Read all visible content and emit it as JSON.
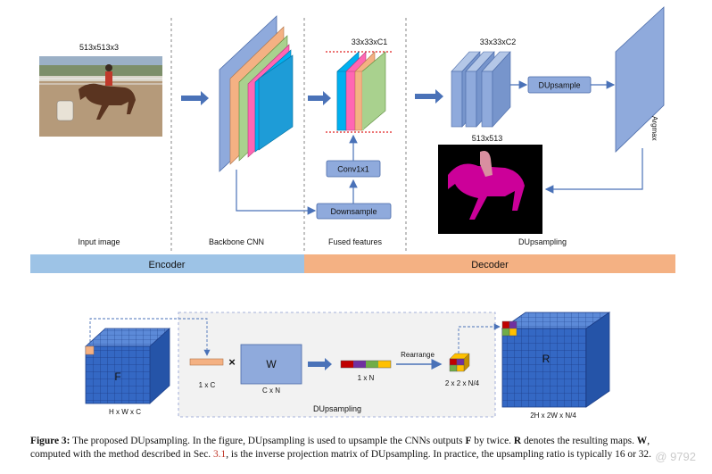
{
  "top": {
    "input_dims": "513x513x3",
    "input_label": "Input image",
    "backbone_label": "Backbone CNN",
    "fused_dims": "33x33xC1",
    "fused_label": "Fused features",
    "conv_label": "Conv1x1",
    "downsample_label": "Downsample",
    "decoder_dims": "33x33xC2",
    "dupsample_box": "DUpsample",
    "argmax_label": "Argmax",
    "output_dims": "513x513",
    "dupsampling_label": "DUpsampling",
    "encoder_bar": "Encoder",
    "decoder_bar": "Decoder"
  },
  "bottom": {
    "f_letter": "F",
    "f_dims": "H x W x C",
    "vec_dims": "1 x C",
    "times": "×",
    "w_letter": "W",
    "w_dims": "C x N",
    "n_dims": "1 x N",
    "rearrange": "Rearrange",
    "small_dims": "2 x 2 x N/4",
    "group_label": "DUpsampling",
    "r_letter": "R",
    "r_dims": "2H x 2W x N/4"
  },
  "caption": {
    "fig_label": "Figure 3:",
    "t1": " The proposed DUpsampling. In the figure, DUpsampling is used to upsample the CNNs outputs ",
    "F": "F",
    "t2": " by twice. ",
    "R": "R",
    "t3": " denotes the resulting maps. ",
    "W": "W",
    "t4": ", computed with the method described in Sec. ",
    "ref": "3.1",
    "t5": ", is the inverse projection matrix of DUpsampling. In practice, the upsampling ratio is typically 16 or 32."
  },
  "watermark": "@ 9792",
  "colors": {
    "blue_block": "#8faadc",
    "blue_edge": "#4a6aa8",
    "encoder_bar": "#9dc3e6",
    "decoder_bar": "#f4b183",
    "arrow": "#4a72b8",
    "magenta": "#cc0099",
    "grid_blue": "#2f5fb8"
  }
}
